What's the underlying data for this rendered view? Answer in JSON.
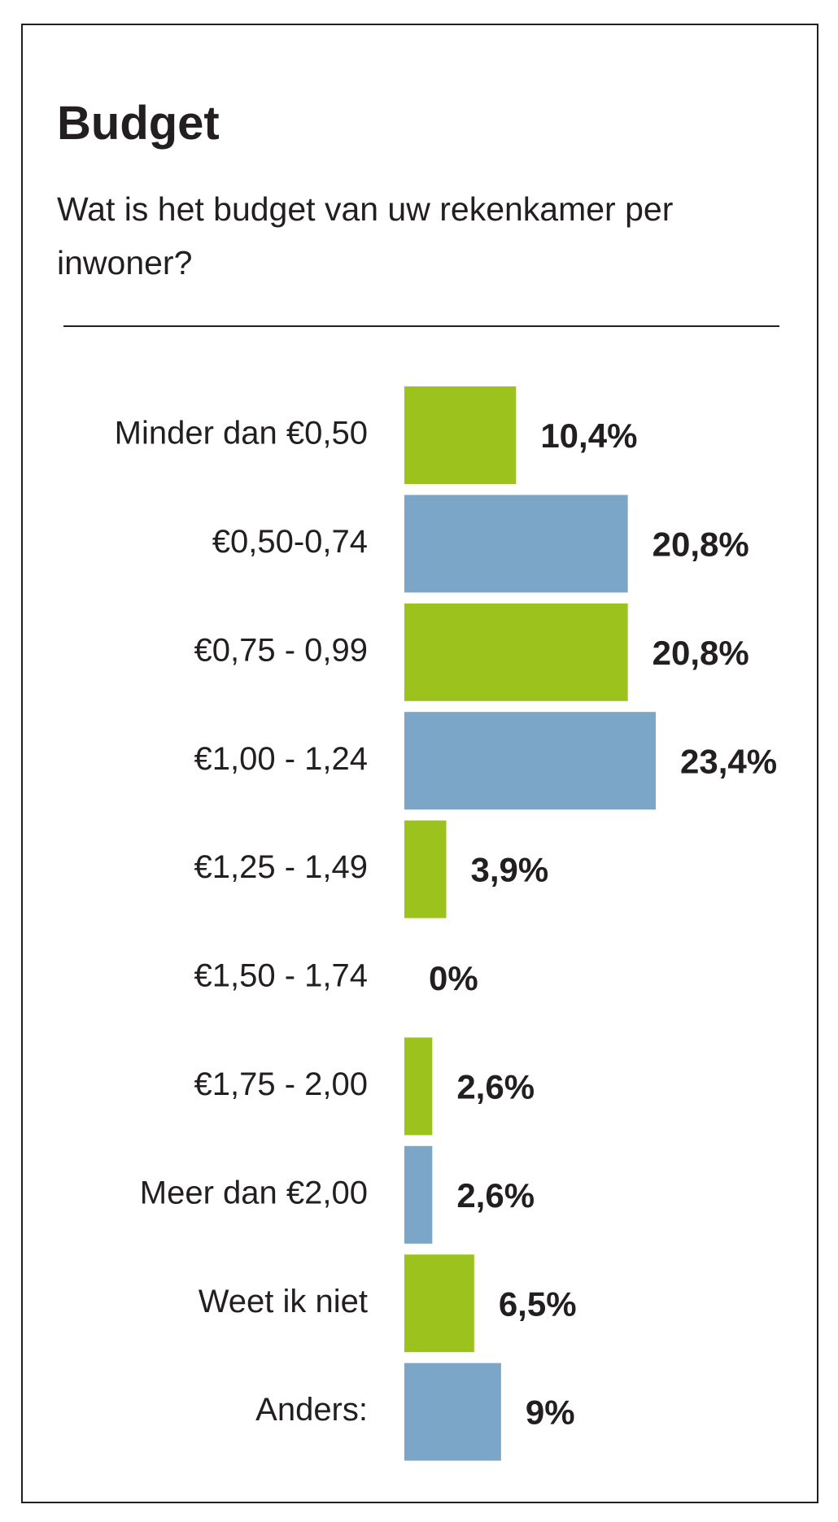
{
  "chart_data": {
    "type": "hbar",
    "title": "Budget",
    "subtitle": "Wat is het budget van uw rekenkamer per inwoner?",
    "categories": [
      "Minder dan €0,50",
      "€0,50-0,74",
      "€0,75 - 0,99",
      "€1,00 - 1,24",
      "€1,25 - 1,49",
      "€1,50 - 1,74",
      "€1,75 - 2,00",
      "Meer dan €2,00",
      "Weet ik niet",
      "Anders:"
    ],
    "values": [
      10.4,
      20.8,
      20.8,
      23.4,
      3.9,
      0,
      2.6,
      2.6,
      6.5,
      9
    ],
    "value_labels": [
      "10,4%",
      "20,8%",
      "20,8%",
      "23,4%",
      "3,9%",
      "0%",
      "2,6%",
      "2,6%",
      "6,5%",
      "9%"
    ],
    "colors": [
      "#9cc21e",
      "#7ba6c7",
      "#9cc21e",
      "#7ba6c7",
      "#9cc21e",
      "#7ba6c7",
      "#9cc21e",
      "#7ba6c7",
      "#9cc21e",
      "#7ba6c7"
    ]
  }
}
